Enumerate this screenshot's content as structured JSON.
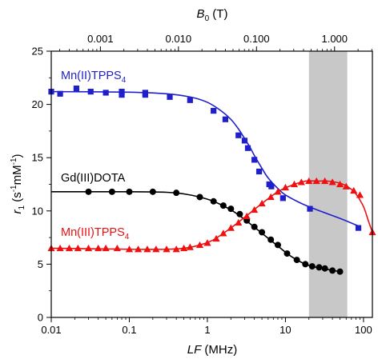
{
  "chart_data": {
    "type": "scatter",
    "xscale": "log",
    "xlabel": {
      "main": "LF",
      "unit": " (MHz)"
    },
    "ylabel": {
      "main": "r",
      "sub": "1",
      "unit_open": " (s",
      "sup1": "-1",
      "mid": "mM",
      "sup2": "-1",
      "unit_close": ")"
    },
    "top_axis": {
      "label_main": "B",
      "label_sub": "0",
      "label_unit": " (T)",
      "ticks": [
        "0.001",
        "0.010",
        "0.100",
        "1.000"
      ],
      "tick_mhz": [
        0.0426,
        0.426,
        4.26,
        42.6
      ]
    },
    "xlim": [
      0.01,
      130
    ],
    "ylim": [
      0,
      25
    ],
    "x_ticks": [
      "0.01",
      "0.1",
      "1",
      "10",
      "100"
    ],
    "y_ticks": [
      "0",
      "5",
      "10",
      "15",
      "20",
      "25"
    ],
    "shaded_region_mhz": [
      20,
      62
    ],
    "grid": false,
    "series": [
      {
        "name": "Mn(II)TPPS",
        "name_sub": "4",
        "color": "#1f1fcc",
        "marker": "square",
        "x": [
          0.01,
          0.013,
          0.021,
          0.032,
          0.05,
          0.08,
          0.08,
          0.16,
          0.16,
          0.33,
          0.6,
          1.2,
          1.7,
          2.5,
          3.0,
          3.3,
          4.0,
          4.6,
          6.2,
          6.6,
          9.3,
          20.6,
          86
        ],
        "y": [
          21.2,
          21.0,
          21.5,
          21.2,
          21.1,
          21.2,
          20.9,
          20.9,
          21.1,
          20.7,
          20.4,
          19.4,
          18.6,
          17.1,
          16.6,
          15.9,
          14.8,
          13.7,
          12.5,
          12.3,
          11.2,
          10.2,
          8.4
        ],
        "fit_x": [
          0.01,
          0.1,
          0.3,
          0.6,
          1.0,
          1.5,
          2.0,
          2.5,
          3.0,
          3.5,
          4.0,
          5.0,
          6.0,
          8.0,
          10,
          15,
          20,
          30,
          50,
          85
        ],
        "fit_y": [
          21.2,
          21.15,
          21.0,
          20.7,
          20.2,
          19.4,
          18.6,
          17.7,
          16.8,
          16.0,
          15.2,
          14.0,
          13.1,
          12.1,
          11.5,
          10.8,
          10.4,
          9.9,
          9.3,
          8.6
        ]
      },
      {
        "name": "Gd(III)DOTA",
        "name_sub": "",
        "color": "#000000",
        "marker": "circle",
        "x": [
          0.03,
          0.06,
          0.1,
          0.2,
          0.4,
          0.8,
          1.2,
          1.6,
          2.0,
          2.6,
          3.2,
          4.0,
          5.0,
          6.5,
          8.0,
          10.5,
          14,
          18,
          22,
          27,
          32,
          40,
          50
        ],
        "y": [
          11.8,
          11.8,
          11.8,
          11.8,
          11.7,
          11.3,
          10.9,
          10.5,
          10.2,
          9.7,
          9.1,
          8.5,
          8.0,
          7.3,
          6.8,
          6.0,
          5.4,
          5.0,
          4.8,
          4.7,
          4.6,
          4.4,
          4.3
        ],
        "fit_x": [
          0.01,
          0.1,
          0.3,
          0.5,
          0.8,
          1.2,
          2.0,
          3.0,
          5.0,
          8.0,
          12,
          18,
          25,
          35,
          50
        ],
        "fit_y": [
          11.8,
          11.8,
          11.75,
          11.6,
          11.3,
          10.9,
          10.1,
          9.2,
          7.9,
          6.7,
          5.7,
          5.0,
          4.7,
          4.5,
          4.3
        ]
      },
      {
        "name": "Mn(III)TPPS",
        "name_sub": "4",
        "color": "#ee1111",
        "marker": "triangle",
        "x": [
          0.01,
          0.013,
          0.017,
          0.022,
          0.03,
          0.04,
          0.05,
          0.07,
          0.1,
          0.13,
          0.17,
          0.22,
          0.3,
          0.4,
          0.5,
          0.6,
          0.8,
          1.0,
          1.3,
          1.6,
          2.0,
          2.5,
          3.2,
          4.0,
          5.0,
          6.5,
          8.0,
          10,
          13,
          16,
          20,
          25,
          32,
          40,
          50,
          60,
          75,
          90,
          130
        ],
        "y": [
          6.5,
          6.5,
          6.5,
          6.5,
          6.5,
          6.5,
          6.5,
          6.5,
          6.4,
          6.4,
          6.4,
          6.4,
          6.4,
          6.4,
          6.5,
          6.6,
          6.8,
          7.0,
          7.4,
          7.9,
          8.4,
          8.9,
          9.5,
          10.1,
          10.7,
          11.3,
          11.8,
          12.2,
          12.5,
          12.7,
          12.8,
          12.8,
          12.8,
          12.7,
          12.5,
          12.3,
          11.9,
          11.5,
          8.0
        ],
        "fit_x": [
          0.01,
          0.1,
          0.3,
          0.5,
          0.8,
          1.2,
          2.0,
          3.0,
          5.0,
          8.0,
          12,
          18,
          25,
          35,
          50,
          65,
          80,
          100,
          115,
          130
        ],
        "fit_y": [
          6.5,
          6.4,
          6.4,
          6.5,
          6.8,
          7.3,
          8.4,
          9.4,
          10.7,
          11.8,
          12.4,
          12.8,
          12.8,
          12.8,
          12.6,
          12.2,
          11.6,
          10.4,
          9.1,
          8.0
        ]
      }
    ]
  }
}
